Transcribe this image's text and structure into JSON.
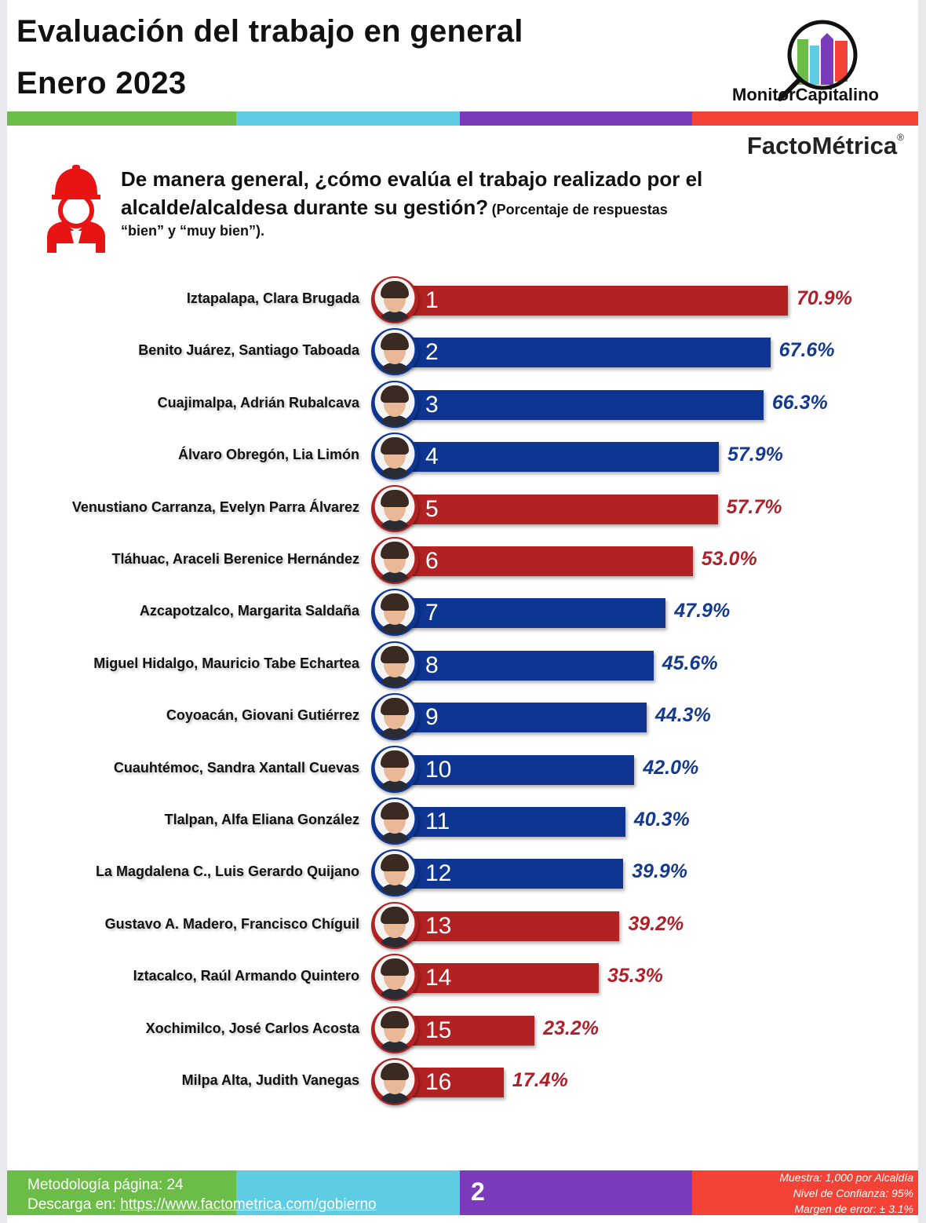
{
  "header": {
    "title_line1": "Evaluación del trabajo en general",
    "title_line2": "Enero 2023",
    "brand_monitor": "MonitorCapitalino",
    "brand_facto": "FactoMétrica",
    "registered_mark": "®"
  },
  "stripe_colors": [
    "#6bbd47",
    "#5ecde3",
    "#7a3cbb",
    "#f44336"
  ],
  "question": {
    "main": "De manera general, ¿cómo evalúa el trabajo realizado por el alcalde/alcaldesa durante su gestión?",
    "note": "(Porcentaje de respuestas",
    "note2": "“bien” y “muy bien”).",
    "icon": "worker-helmet-icon"
  },
  "chart_data": {
    "type": "bar",
    "orientation": "horizontal",
    "title": "De manera general, ¿cómo evalúa el trabajo realizado por el alcalde/alcaldesa durante su gestión?",
    "subtitle": "Porcentaje de respuestas “bien” y “muy bien”",
    "unit": "%",
    "xlim": [
      0,
      100
    ],
    "grid": false,
    "colors": {
      "red": "#b22222",
      "blue": "#0d3591"
    },
    "label_colors": {
      "red": "#b0202a",
      "blue": "#143a8f"
    },
    "categories": [
      "Iztapalapa, Clara Brugada",
      "Benito Juárez, Santiago Taboada",
      "Cuajimalpa, Adrián Rubalcava",
      "Álvaro Obregón, Lia Limón",
      "Venustiano Carranza, Evelyn Parra Álvarez",
      "Tláhuac, Araceli Berenice Hernández",
      "Azcapotzalco, Margarita Saldaña",
      "Miguel Hidalgo, Mauricio Tabe Echartea",
      "Coyoacán, Giovani Gutiérrez",
      "Cuauhtémoc, Sandra Xantall Cuevas",
      "Tlalpan, Alfa Eliana González",
      "La Magdalena C., Luis Gerardo Quijano",
      "Gustavo A. Madero, Francisco Chíguil",
      "Iztacalco, Raúl Armando Quintero",
      "Xochimilco, José Carlos Acosta",
      "Milpa Alta, Judith Vanegas"
    ],
    "ranks": [
      "1",
      "2",
      "3",
      "4",
      "5",
      "6",
      "7",
      "8",
      "9",
      "10",
      "11",
      "12",
      "13",
      "14",
      "15",
      "16"
    ],
    "values": [
      70.9,
      67.6,
      66.3,
      57.9,
      57.7,
      53.0,
      47.9,
      45.6,
      44.3,
      42.0,
      40.3,
      39.9,
      39.2,
      35.3,
      23.2,
      17.4
    ],
    "value_labels": [
      "70.9%",
      "67.6%",
      "66.3%",
      "57.9%",
      "57.7%",
      "53.0%",
      "47.9%",
      "45.6%",
      "44.3%",
      "42.0%",
      "40.3%",
      "39.9%",
      "39.2%",
      "35.3%",
      "23.2%",
      "17.4%"
    ],
    "bar_color_keys": [
      "red",
      "blue",
      "blue",
      "blue",
      "red",
      "red",
      "blue",
      "blue",
      "blue",
      "blue",
      "blue",
      "blue",
      "red",
      "red",
      "red",
      "red"
    ]
  },
  "footer": {
    "methodology": "Metodología página: 24",
    "download_prefix": "Descarga en: ",
    "download_link": "https://www.factometrica.com/gobierno",
    "page_number": "2",
    "sample": "Muestra:  1,000 por Alcaldía",
    "confidence": "Nivel de Confianza: 95%",
    "margin": "Margen de error: ± 3.1%"
  }
}
